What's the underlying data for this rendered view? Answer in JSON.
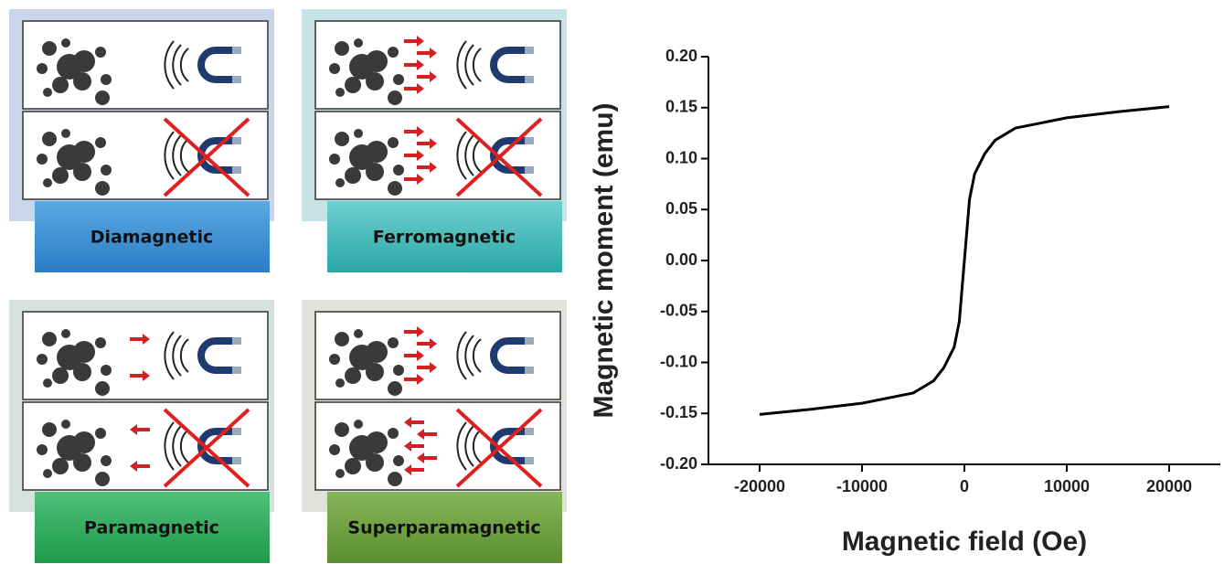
{
  "panels": [
    {
      "label": "Diamagnetic"
    },
    {
      "label": "Ferromagnetic"
    },
    {
      "label": "Paramagnetic"
    },
    {
      "label": "Superparamagnetic"
    }
  ],
  "chart_data": {
    "type": "line",
    "x_label": "Magnetic field (Oe)",
    "y_label": "Magnetic moment (emu)",
    "x": [
      -20000,
      -15000,
      -10000,
      -5000,
      -3000,
      -2000,
      -1000,
      -500,
      0,
      500,
      1000,
      2000,
      3000,
      5000,
      10000,
      15000,
      20000
    ],
    "values": [
      -0.151,
      -0.146,
      -0.14,
      -0.13,
      -0.118,
      -0.105,
      -0.085,
      -0.06,
      0,
      0.06,
      0.085,
      0.105,
      0.118,
      0.13,
      0.14,
      0.146,
      0.151
    ],
    "color": "#000000",
    "xlim": [
      -25000,
      25000
    ],
    "ylim": [
      -0.2,
      0.2
    ],
    "xticks": [
      -20000,
      -10000,
      0,
      10000,
      20000
    ],
    "yticks": [
      {
        "value": 0.2,
        "label": "0.20"
      },
      {
        "value": 0.15,
        "label": "0.15"
      },
      {
        "value": 0.1,
        "label": "0.10"
      },
      {
        "value": 0.05,
        "label": "0.05"
      },
      {
        "value": 0,
        "label": "0.00"
      },
      {
        "value": -0.05,
        "label": "-0.05"
      },
      {
        "value": -0.1,
        "label": "-0.10"
      },
      {
        "value": -0.15,
        "label": "-0.15"
      },
      {
        "value": -0.2,
        "label": "-0.20"
      }
    ]
  }
}
